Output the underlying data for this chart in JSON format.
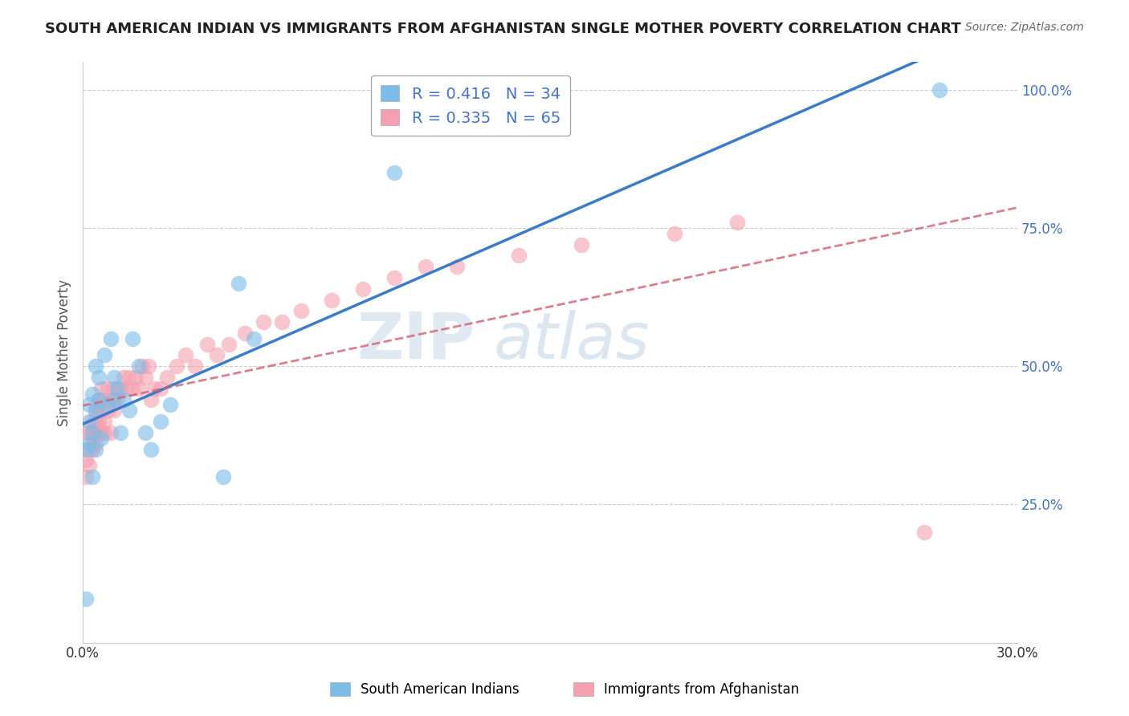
{
  "title": "SOUTH AMERICAN INDIAN VS IMMIGRANTS FROM AFGHANISTAN SINGLE MOTHER POVERTY CORRELATION CHART",
  "source": "Source: ZipAtlas.com",
  "ylabel": "Single Mother Poverty",
  "xlim": [
    0.0,
    0.3
  ],
  "ylim": [
    0.0,
    1.05
  ],
  "yticks": [
    0.25,
    0.5,
    0.75,
    1.0
  ],
  "ytick_labels": [
    "25.0%",
    "50.0%",
    "75.0%",
    "100.0%"
  ],
  "series1_label": "South American Indians",
  "series2_label": "Immigrants from Afghanistan",
  "series1_color": "#7bbce8",
  "series2_color": "#f4a0b0",
  "line1_color": "#3a7cc7",
  "line2_color": "#d06070",
  "yaxis_label_color": "#4472c4",
  "legend_r1": "R = 0.416",
  "legend_n1": "N = 34",
  "legend_r2": "R = 0.335",
  "legend_n2": "N = 65",
  "legend_text_color": "#4472c4",
  "watermark1": "ZIP",
  "watermark2": "atlas",
  "background_color": "#ffffff",
  "series1_x": [
    0.001,
    0.001,
    0.002,
    0.002,
    0.002,
    0.003,
    0.003,
    0.003,
    0.004,
    0.004,
    0.004,
    0.005,
    0.005,
    0.006,
    0.007,
    0.008,
    0.009,
    0.01,
    0.01,
    0.011,
    0.012,
    0.013,
    0.015,
    0.016,
    0.018,
    0.02,
    0.022,
    0.025,
    0.028,
    0.045,
    0.05,
    0.055,
    0.1,
    0.275
  ],
  "series1_y": [
    0.08,
    0.35,
    0.36,
    0.4,
    0.43,
    0.45,
    0.38,
    0.3,
    0.42,
    0.35,
    0.5,
    0.44,
    0.48,
    0.37,
    0.52,
    0.43,
    0.55,
    0.48,
    0.44,
    0.46,
    0.38,
    0.44,
    0.42,
    0.55,
    0.5,
    0.38,
    0.35,
    0.4,
    0.43,
    0.3,
    0.65,
    0.55,
    0.85,
    1.0
  ],
  "series2_x": [
    0.001,
    0.001,
    0.001,
    0.002,
    0.002,
    0.002,
    0.003,
    0.003,
    0.003,
    0.003,
    0.004,
    0.004,
    0.004,
    0.004,
    0.005,
    0.005,
    0.005,
    0.005,
    0.006,
    0.006,
    0.006,
    0.007,
    0.007,
    0.007,
    0.008,
    0.008,
    0.009,
    0.009,
    0.01,
    0.01,
    0.011,
    0.012,
    0.013,
    0.014,
    0.015,
    0.016,
    0.017,
    0.018,
    0.019,
    0.02,
    0.021,
    0.022,
    0.023,
    0.025,
    0.027,
    0.03,
    0.033,
    0.036,
    0.04,
    0.043,
    0.047,
    0.052,
    0.058,
    0.064,
    0.07,
    0.08,
    0.09,
    0.1,
    0.11,
    0.12,
    0.14,
    0.16,
    0.19,
    0.21,
    0.27
  ],
  "series2_y": [
    0.3,
    0.33,
    0.38,
    0.35,
    0.38,
    0.32,
    0.35,
    0.38,
    0.4,
    0.36,
    0.38,
    0.4,
    0.42,
    0.36,
    0.42,
    0.38,
    0.4,
    0.44,
    0.38,
    0.42,
    0.46,
    0.4,
    0.44,
    0.38,
    0.42,
    0.46,
    0.38,
    0.44,
    0.46,
    0.42,
    0.44,
    0.46,
    0.48,
    0.46,
    0.48,
    0.46,
    0.48,
    0.46,
    0.5,
    0.48,
    0.5,
    0.44,
    0.46,
    0.46,
    0.48,
    0.5,
    0.52,
    0.5,
    0.54,
    0.52,
    0.54,
    0.56,
    0.58,
    0.58,
    0.6,
    0.62,
    0.64,
    0.66,
    0.68,
    0.68,
    0.7,
    0.72,
    0.74,
    0.76,
    0.2
  ],
  "title_color": "#222222",
  "source_color": "#666666"
}
